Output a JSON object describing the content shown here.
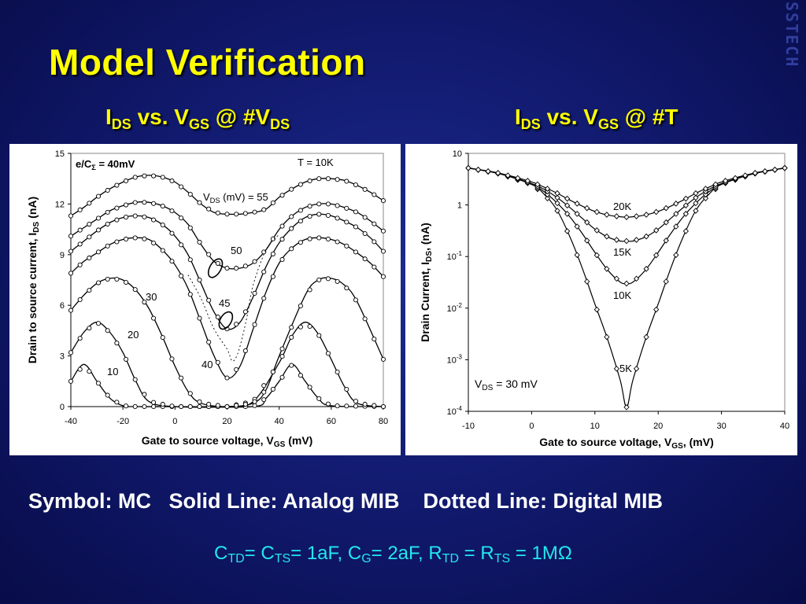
{
  "slide": {
    "title": "Model Verification",
    "corner_logo": "SSTECH",
    "left_subtitle": {
      "I": "I",
      "sub1": "DS",
      "mid": " vs. V",
      "sub2": "GS",
      "end": " @ #V",
      "sub3": "DS"
    },
    "right_subtitle": {
      "I": "I",
      "sub1": "DS",
      "mid": " vs. V",
      "sub2": "GS",
      "end": " @ #T"
    },
    "legend": {
      "symbol": "Symbol: MC",
      "solid": "Solid Line: Analog MIB",
      "dotted": "Dotted Line: Digital MIB"
    },
    "params": {
      "c": "C",
      "td": "TD",
      "eq1": "= C",
      "ts": "TS",
      "eq2": "= 1aF, C",
      "g": "G",
      "eq3": "= 2aF, R",
      "td2": "TD",
      "eq4": " = R",
      "ts2": "TS",
      "eq5": " = 1MΩ"
    },
    "colors": {
      "background": "#10186a",
      "title": "#ffff00",
      "params": "#22e8ee",
      "legend": "#ffffff"
    }
  },
  "chart_data": [
    {
      "type": "line",
      "xlabel": "Gate to source voltage, V",
      "xlabel_sub": "GS",
      "xlabel_unit": " (mV)",
      "ylabel": "Drain to source current, I",
      "ylabel_sub": "DS",
      "ylabel_unit": " (nA)",
      "xlim": [
        -40,
        80
      ],
      "ylim": [
        0,
        15
      ],
      "xticks": [
        "-40",
        "-20",
        "0",
        "20",
        "40",
        "60",
        "80"
      ],
      "yticks": [
        "0",
        "3",
        "6",
        "9",
        "12",
        "15"
      ],
      "annotations": {
        "ec": "e/C",
        "ec_sub": "Σ",
        "ec_val": " = 40mV",
        "temp": "T = 10K",
        "vds": "V",
        "vds_sub": "DS",
        "vds_unit": " (mV) = ",
        "l55": "55",
        "l50": "50",
        "l45": "45",
        "l40": "40",
        "l30": "30",
        "l20": "20",
        "l10": "10"
      },
      "series": [
        {
          "vds": 10,
          "x": [
            -40,
            -35,
            -30,
            -25,
            -20,
            -15,
            0,
            30,
            35,
            40,
            45,
            50,
            55,
            60,
            80
          ],
          "y": [
            1.5,
            2.5,
            1.5,
            0.5,
            0.05,
            0.0,
            0.0,
            0.0,
            0.5,
            1.5,
            2.5,
            1.5,
            0.5,
            0.05,
            0.0
          ]
        },
        {
          "vds": 20,
          "x": [
            -40,
            -35,
            -30,
            -25,
            -20,
            -15,
            -10,
            0,
            20,
            30,
            40,
            45,
            50,
            55,
            60,
            65,
            70,
            80
          ],
          "y": [
            3.2,
            4.4,
            5.0,
            4.4,
            3.2,
            1.5,
            0.3,
            0.0,
            0.0,
            0.3,
            2.6,
            4.2,
            5.0,
            4.3,
            2.8,
            1.2,
            0.2,
            0.0
          ]
        },
        {
          "vds": 30,
          "x": [
            -40,
            -35,
            -30,
            -25,
            -20,
            -15,
            -10,
            -5,
            0,
            5,
            10,
            20,
            30,
            35,
            40,
            50,
            55,
            60,
            65,
            70,
            80
          ],
          "y": [
            5.7,
            6.6,
            7.3,
            7.6,
            7.5,
            6.9,
            5.8,
            4.2,
            2.4,
            0.9,
            0.2,
            0.0,
            0.2,
            1.0,
            3.0,
            6.6,
            7.5,
            7.6,
            7.2,
            6.2,
            2.8
          ]
        },
        {
          "vds": 40,
          "x": [
            -40,
            -35,
            -30,
            -25,
            -20,
            -15,
            -10,
            -5,
            0,
            5,
            10,
            15,
            20,
            25,
            30,
            35,
            40,
            45,
            50,
            55,
            60,
            65,
            70,
            75,
            80
          ],
          "y": [
            7.9,
            8.6,
            9.1,
            9.6,
            9.9,
            10.0,
            9.9,
            9.3,
            8.4,
            7.0,
            5.0,
            3.0,
            1.7,
            2.4,
            4.6,
            6.8,
            8.5,
            9.4,
            9.9,
            10.0,
            9.9,
            9.6,
            9.1,
            8.5,
            7.7
          ]
        },
        {
          "vds": 45,
          "x": [
            -40,
            -35,
            -30,
            -25,
            -20,
            -15,
            -10,
            -5,
            0,
            5,
            10,
            15,
            20,
            25,
            30,
            35,
            40,
            45,
            50,
            55,
            60,
            65,
            70,
            75,
            80
          ],
          "y": [
            9.2,
            9.8,
            10.4,
            10.9,
            11.2,
            11.3,
            11.2,
            10.8,
            10.1,
            9.0,
            7.3,
            5.6,
            4.6,
            5.0,
            6.5,
            8.3,
            9.7,
            10.6,
            11.2,
            11.4,
            11.3,
            11.0,
            10.6,
            10.0,
            9.2
          ]
        },
        {
          "vds": 50,
          "x": [
            -40,
            -35,
            -30,
            -25,
            -20,
            -15,
            -10,
            -5,
            0,
            5,
            10,
            15,
            20,
            25,
            30,
            35,
            40,
            45,
            50,
            55,
            60,
            65,
            70,
            75,
            80
          ],
          "y": [
            10.1,
            10.6,
            11.1,
            11.6,
            11.9,
            12.1,
            12.1,
            11.9,
            11.5,
            10.8,
            9.6,
            8.6,
            8.2,
            8.2,
            8.5,
            9.3,
            10.5,
            11.3,
            11.8,
            12.0,
            12.0,
            11.8,
            11.5,
            11.0,
            10.4
          ]
        },
        {
          "vds": 55,
          "x": [
            -40,
            -35,
            -30,
            -25,
            -20,
            -15,
            -10,
            -5,
            0,
            5,
            10,
            15,
            20,
            25,
            30,
            35,
            40,
            45,
            50,
            55,
            60,
            65,
            70,
            75,
            80
          ],
          "y": [
            11.3,
            11.8,
            12.4,
            12.9,
            13.3,
            13.6,
            13.7,
            13.6,
            13.3,
            12.7,
            12.0,
            11.5,
            11.4,
            11.4,
            11.5,
            11.7,
            12.4,
            12.9,
            13.3,
            13.5,
            13.5,
            13.4,
            13.1,
            12.7,
            12.2
          ]
        }
      ],
      "dotted_x": [
        5,
        10,
        15,
        20,
        22,
        24,
        26,
        28,
        30,
        35,
        40
      ],
      "dotted_y": [
        7.8,
        6.4,
        4.6,
        3.4,
        2.7,
        3.1,
        4.2,
        5.6,
        7.2,
        9.3,
        10.2
      ]
    },
    {
      "type": "line",
      "xlabel": "Gate to source voltage, V",
      "xlabel_sub": "GS",
      "xlabel_unit": ", (mV)",
      "ylabel": "Drain Current, I",
      "ylabel_sub": "DS",
      "ylabel_unit": ", (nA)",
      "yscale": "log",
      "xlim": [
        -10,
        40
      ],
      "ylim": [
        0.0001,
        10
      ],
      "xticks": [
        "-10",
        "0",
        "10",
        "20",
        "30",
        "40"
      ],
      "yticks": [
        "10",
        "1",
        "10-1",
        "10-2",
        "10-3",
        "10-4"
      ],
      "annotations": {
        "vds": "V",
        "vds_sub": "DS",
        "vds_val": " = 30 mV",
        "t20": "20K",
        "t15": "15K",
        "t10": "10K",
        "t5": "5K"
      },
      "series": [
        {
          "temp": "5K",
          "x": [
            -10,
            -5,
            0,
            2,
            4,
            6,
            8,
            10,
            12,
            14,
            15,
            16,
            18,
            20,
            22,
            24,
            26,
            28,
            30,
            35,
            40
          ],
          "y": [
            5.2,
            4.0,
            2.5,
            1.6,
            0.8,
            0.25,
            0.06,
            0.012,
            0.0025,
            0.0004,
            0.00012,
            0.0004,
            0.0025,
            0.012,
            0.06,
            0.25,
            0.8,
            1.6,
            2.5,
            4.0,
            5.2
          ]
        },
        {
          "temp": "10K",
          "x": [
            -10,
            -5,
            0,
            2,
            4,
            6,
            8,
            10,
            12,
            14,
            15,
            16,
            18,
            20,
            22,
            24,
            26,
            28,
            30,
            35,
            40
          ],
          "y": [
            5.2,
            4.0,
            2.5,
            1.8,
            1.1,
            0.6,
            0.28,
            0.12,
            0.055,
            0.032,
            0.03,
            0.032,
            0.055,
            0.12,
            0.28,
            0.6,
            1.1,
            1.8,
            2.5,
            4.0,
            5.2
          ]
        },
        {
          "temp": "15K",
          "x": [
            -10,
            -5,
            0,
            2,
            4,
            6,
            8,
            10,
            12,
            14,
            15,
            16,
            18,
            20,
            22,
            24,
            26,
            28,
            30,
            35,
            40
          ],
          "y": [
            5.2,
            4.1,
            2.6,
            2.0,
            1.4,
            0.9,
            0.55,
            0.34,
            0.24,
            0.2,
            0.2,
            0.2,
            0.24,
            0.34,
            0.55,
            0.9,
            1.4,
            2.0,
            2.6,
            4.1,
            5.2
          ]
        },
        {
          "temp": "20K",
          "x": [
            -10,
            -5,
            0,
            2,
            4,
            6,
            8,
            10,
            12,
            14,
            15,
            16,
            18,
            20,
            22,
            24,
            26,
            28,
            30,
            35,
            40
          ],
          "y": [
            5.2,
            4.1,
            2.8,
            2.2,
            1.7,
            1.25,
            0.95,
            0.75,
            0.64,
            0.59,
            0.58,
            0.59,
            0.64,
            0.75,
            0.95,
            1.25,
            1.7,
            2.2,
            2.8,
            4.1,
            5.2
          ]
        }
      ]
    }
  ]
}
